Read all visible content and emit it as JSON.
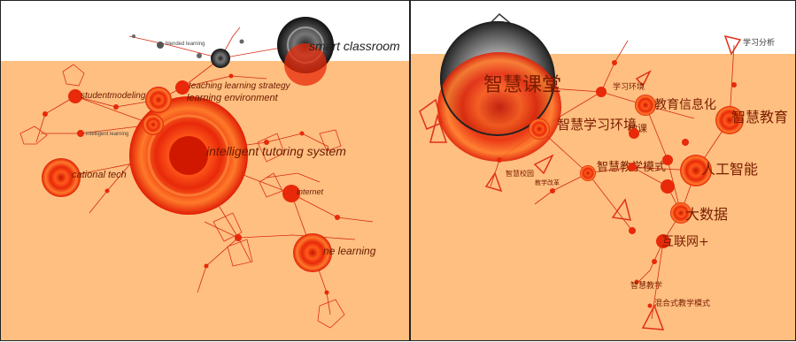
{
  "colors": {
    "band": "#ffbf80",
    "node_hot": "#e8290a",
    "node_mid": "#ff6a1a",
    "node_gray": "#555555",
    "edge": "#d42a10",
    "label": "#6a1a00"
  },
  "left_panel": {
    "labels": {
      "smart_classroom": "smart classroom",
      "tutoring": "intelligent tutoring system",
      "learning_env": "learning environment",
      "teaching_strategy": "teaching learning strategy",
      "educational_tech": "cational tech",
      "student_modeling": "studentmodeling",
      "online_learning": "ne learning",
      "blended": "blended learning",
      "intelligent_learning": "intelligent learning",
      "internet": "internet"
    }
  },
  "right_panel": {
    "labels": {
      "smart_classroom": "智慧课堂",
      "learning_analytics": "学习分析",
      "smart_education": "智慧教育",
      "ai": "人工智能",
      "big_data": "大数据",
      "internet_plus": "互联网+",
      "smart_teaching_mode": "智慧教学模式",
      "smart_learning_env": "智慧学习环境",
      "edu_informatization": "教育信息化",
      "smart_teaching": "智慧教学",
      "blended_mode": "混合式教学模式",
      "smart_campus": "智慧校园",
      "teaching_reform": "教学改革",
      "microlecture": "微课",
      "learning_env": "学习环境"
    }
  }
}
